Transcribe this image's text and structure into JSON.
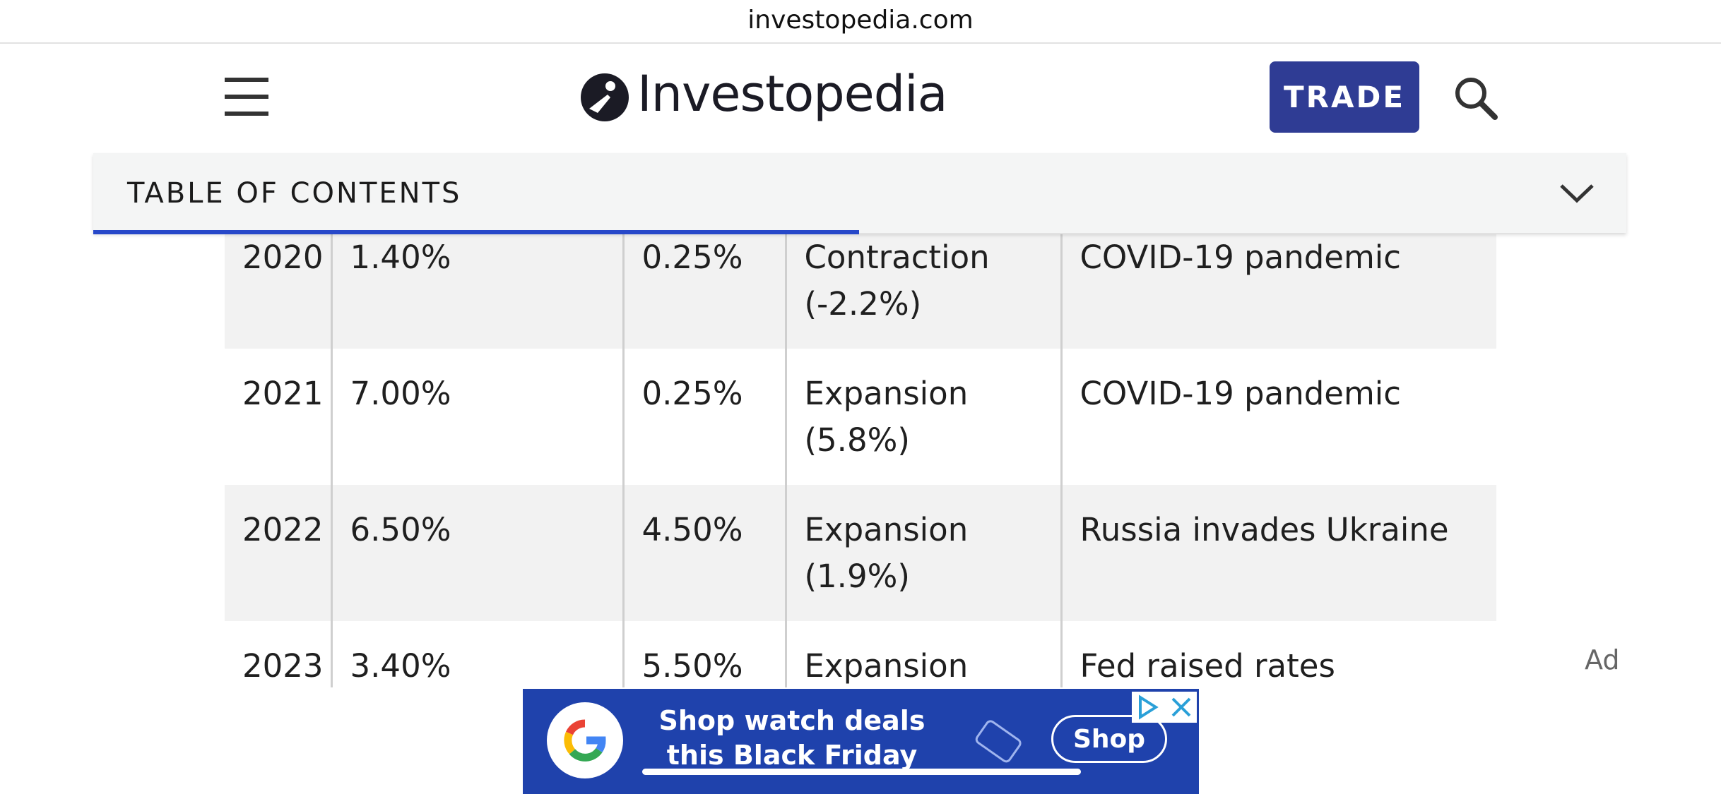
{
  "browser": {
    "url": "investopedia.com"
  },
  "header": {
    "logo": "Investopedia",
    "button": "TRADE"
  },
  "toc": {
    "title": "TABLE OF CONTENTS"
  },
  "table": {
    "rows": [
      [
        "2020",
        "1.40%",
        "0.25%",
        "Contraction (-2.2%)",
        "COVID-19 pandemic"
      ],
      [
        "2021",
        "7.00%",
        "0.25%",
        "Expansion (5.8%)",
        "COVID-19 pandemic"
      ],
      [
        "2022",
        "6.50%",
        "4.50%",
        "Expansion (1.9%)",
        "Russia invades Ukraine"
      ],
      [
        "2023",
        "3.40%",
        "5.50%",
        "Expansion",
        "Fed raised rates"
      ]
    ]
  },
  "ad": {
    "label": "Ad",
    "headline": [
      "Shop watch deals",
      "this Black Friday"
    ],
    "button": "Shop"
  }
}
